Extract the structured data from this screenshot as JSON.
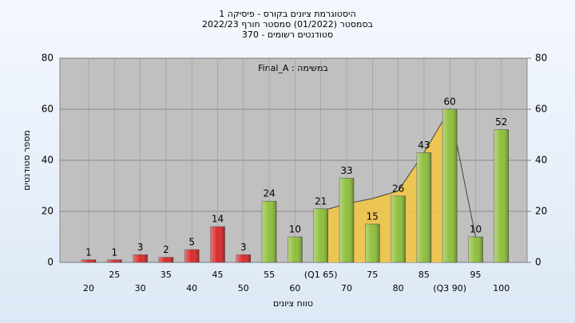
{
  "chart_data": {
    "type": "bar",
    "title": [
      "היסטוגרמת ציונים בקורס - פיסיקה 1",
      "בסמסטר (01/2022) סמסטר חורף 2022/23",
      "סטודנטים רשומים - 370"
    ],
    "annotation": "Final_A : במשימה",
    "x_label": "טווח ציונים",
    "y_label": "מספר סטודנטים",
    "categories": [
      "20",
      "25",
      "30",
      "35",
      "40",
      "45",
      "50",
      "55",
      "60",
      "(Q1 65)",
      "70",
      "75",
      "80",
      "85",
      "(Q3 90)",
      "95",
      "100"
    ],
    "values": [
      1,
      1,
      3,
      2,
      5,
      14,
      3,
      24,
      10,
      21,
      33,
      15,
      26,
      43,
      60,
      10,
      52
    ],
    "colors": [
      "#d92b2b",
      "#d92b2b",
      "#d92b2b",
      "#d92b2b",
      "#d92b2b",
      "#d92b2b",
      "#d92b2b",
      "#8fbf3c",
      "#8fbf3c",
      "#8fbf3c",
      "#8fbf3c",
      "#8fbf3c",
      "#8fbf3c",
      "#8fbf3c",
      "#8fbf3c",
      "#8fbf3c",
      "#8fbf3c"
    ],
    "area_values": [
      null,
      null,
      null,
      null,
      null,
      null,
      null,
      null,
      null,
      20,
      23,
      25,
      28,
      43,
      60,
      10,
      null
    ],
    "area_color": "#f5c542",
    "ylim": [
      0,
      80
    ],
    "yticks": [
      0,
      20,
      40,
      60,
      80
    ],
    "y2lim": [
      0,
      80
    ],
    "y2ticks": [
      0,
      20,
      40,
      60,
      80
    ],
    "grid": true
  }
}
